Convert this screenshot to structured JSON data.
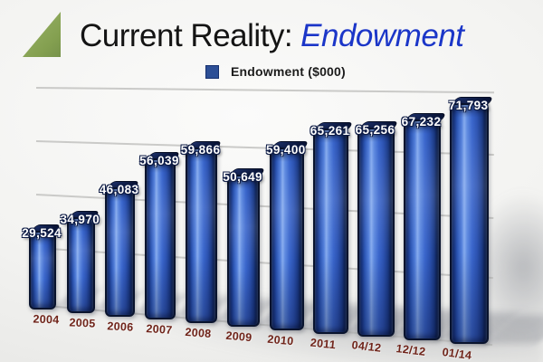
{
  "slide": {
    "title_black": "Current Reality:",
    "title_blue": "Endowment",
    "logo": "green-triangle-logo",
    "background_color": "#f3f3f1",
    "title_accent_color": "#1b36c8",
    "logo_color": "#84a050"
  },
  "legend": {
    "label": "Endowment ($000)",
    "swatch_color": "#2d4f96"
  },
  "chart_data": {
    "type": "bar",
    "style": "3d-perspective-glossy",
    "title": "Current Reality: Endowment",
    "legend_entries": [
      "Endowment ($000)"
    ],
    "categories": [
      "2004",
      "2005",
      "2006",
      "2007",
      "2008",
      "2009",
      "2010",
      "2011",
      "04/12",
      "12/12",
      "01/14"
    ],
    "series": [
      {
        "name": "Endowment ($000)",
        "values": [
          29524,
          34970,
          46083,
          56039,
          59866,
          50649,
          59400,
          65261,
          65256,
          67232,
          71793
        ],
        "value_labels": [
          "29,524",
          "34,970",
          "46,083",
          "56,039",
          "59,866",
          "50,649",
          "59,400",
          "65,261",
          "65,256",
          "67,232",
          "71,793"
        ]
      }
    ],
    "xlabel": "",
    "ylabel": "",
    "y_axis_visible": false,
    "grid": true,
    "gridline_count": 5,
    "legend_position": "top-center",
    "bar_color": "#3a66cc",
    "bar_edge_color": "#0a142e",
    "value_label_color": "#ffffff",
    "category_label_color": "#70241a",
    "gridline_color": "#c2c2c0"
  }
}
